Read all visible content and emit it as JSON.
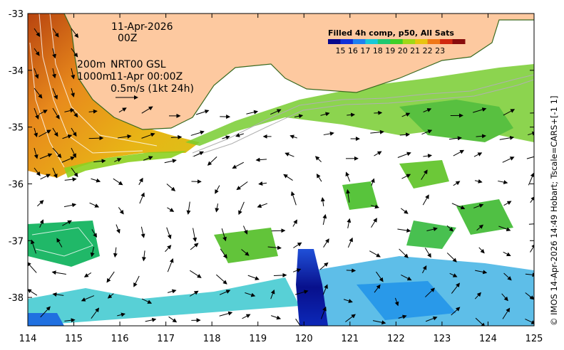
{
  "map": {
    "date": "11-Apr-2026",
    "hour": "00Z",
    "contour_label_200": "200m",
    "contour_label_1000": "1000m",
    "product": "NRT00 GSL",
    "product_time": "11-Apr 00:00Z",
    "vector_scale_label": "0.5m/s (1kt 24h)",
    "colorbar_title": "Filled 4h comp, p50, All Sats",
    "colorbar_ticks": [
      "15",
      "16",
      "17",
      "18",
      "19",
      "20",
      "21",
      "22",
      "23"
    ],
    "colorbar_colors": [
      "#08088c",
      "#1030d8",
      "#1e80f0",
      "#18c8d8",
      "#20c870",
      "#40d028",
      "#a0d818",
      "#e8c410",
      "#f07818",
      "#d02810",
      "#880c0c"
    ],
    "attribution": "© IMOS 14-Apr-2026 14:49 Hobart; Tscale=CARS+[-1 1]",
    "land_color": "#fdc9a0"
  },
  "chart_data": {
    "type": "map",
    "x_ticks": [
      "114",
      "115",
      "116",
      "117",
      "118",
      "119",
      "120",
      "121",
      "122",
      "123",
      "124",
      "125"
    ],
    "y_ticks": [
      "-33",
      "-34",
      "-35",
      "-36",
      "-37",
      "-38"
    ],
    "xlim": [
      114,
      125
    ],
    "ylim": [
      -38.5,
      -33
    ],
    "xlabel": "",
    "ylabel": ""
  }
}
